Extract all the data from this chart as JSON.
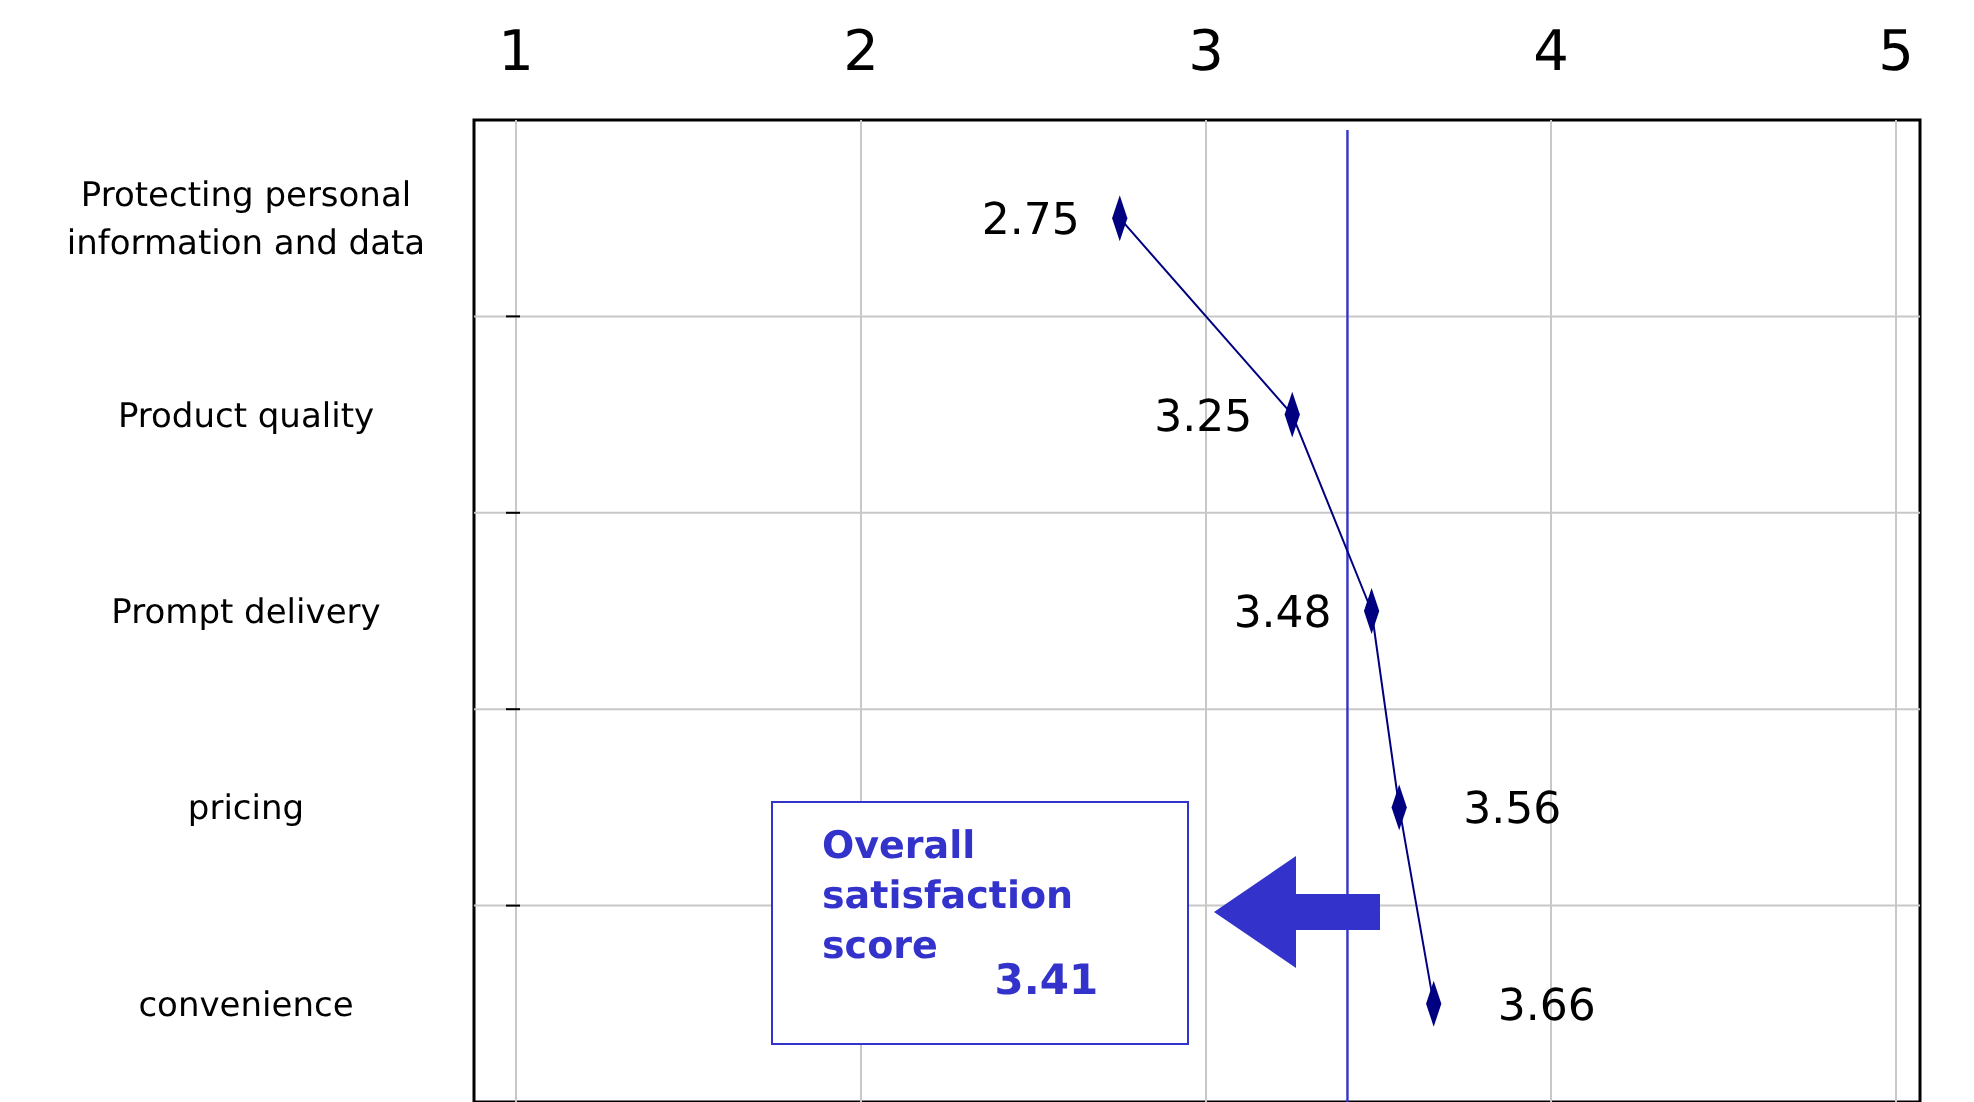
{
  "chart_data": {
    "type": "line",
    "categories": [
      "Protecting personal information and data",
      "Product quality",
      "Prompt delivery",
      "pricing",
      "convenience"
    ],
    "orientation": "horizontal",
    "series": [
      {
        "color": "#000080",
        "values": [
          2.75,
          3.25,
          3.48,
          3.56,
          3.66
        ]
      }
    ],
    "xlim": [
      1,
      5
    ],
    "xticks": [
      1,
      2,
      3,
      4,
      5
    ],
    "grid": true,
    "marker": "diamond",
    "data_labels": true,
    "ref_lines": [
      {
        "axis": "x",
        "value": 3.41,
        "label": "Overall satisfaction score 3.41",
        "color": "#3333cc"
      }
    ]
  }
}
